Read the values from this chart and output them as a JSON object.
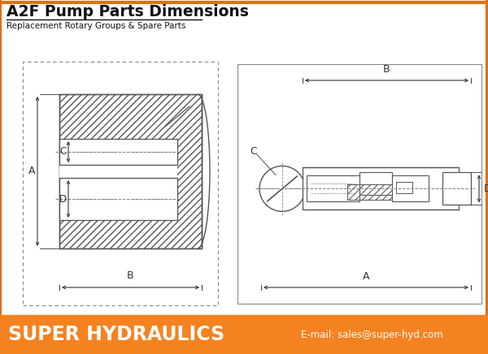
{
  "title": "A2F Pump Parts Dimensions",
  "subtitle": "Replacement Rotary Groups & Spare Parts",
  "footer_text": "SUPER HYDRAULICS",
  "footer_email": "E-mail: sales@super-hyd.com",
  "footer_bg": "#F58220",
  "footer_text_color": "#FFFFFF",
  "title_color": "#111111",
  "border_color": "#888888",
  "line_color": "#555555",
  "dim_color": "#333333",
  "hatch_color": "#777777",
  "bg_color": "#FFFFFF",
  "outer_border_color": "#E07010"
}
